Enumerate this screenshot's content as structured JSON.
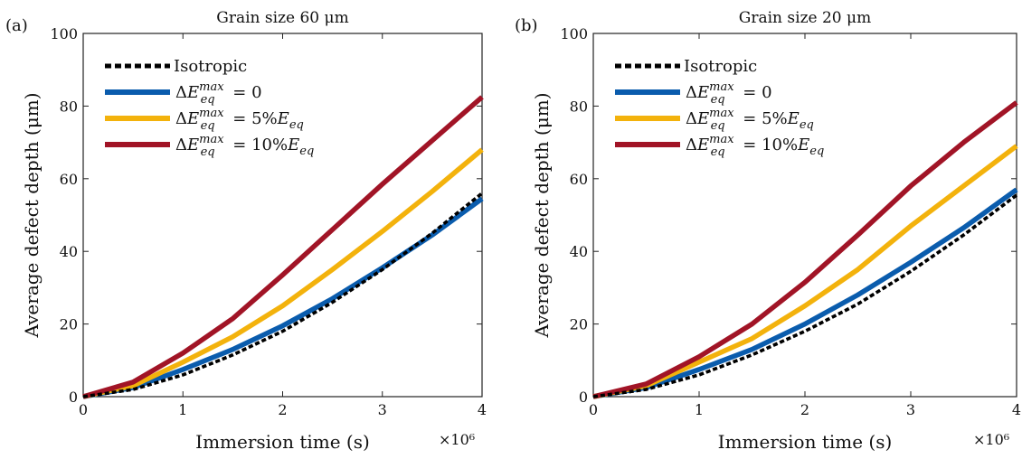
{
  "chart_data": [
    {
      "panel": "(a)",
      "type": "line",
      "title": "Grain size 60 μm",
      "xlabel": "Immersion time (s)",
      "x_multiplier": "×10⁶",
      "ylabel": "Average defect depth (μm)",
      "xlim": [
        0,
        4
      ],
      "ylim": [
        0,
        100
      ],
      "xticks": [
        "0",
        "1",
        "2",
        "3",
        "4"
      ],
      "yticks": [
        "0",
        "20",
        "40",
        "60",
        "80",
        "100"
      ],
      "legend_position": "top-left",
      "series": [
        {
          "name": "Isotropic",
          "style": "dotted",
          "color": "#000000",
          "x": [
            0,
            0.5,
            1,
            1.5,
            2,
            2.5,
            3,
            3.5,
            4
          ],
          "y": [
            0,
            2,
            6,
            11.5,
            18,
            26,
            35,
            45,
            56
          ]
        },
        {
          "name": "ΔE_eq^max = 0",
          "style": "solid",
          "color": "#0a5cad",
          "x": [
            0,
            0.5,
            1,
            1.5,
            2,
            2.5,
            3,
            3.5,
            4
          ],
          "y": [
            0,
            2.5,
            7.5,
            13,
            19.5,
            27,
            35.5,
            44.5,
            54.5
          ]
        },
        {
          "name": "ΔE_eq^max = 5%E_eq",
          "style": "solid",
          "color": "#f3b20c",
          "x": [
            0,
            0.5,
            1,
            1.5,
            2,
            2.5,
            3,
            3.5,
            4
          ],
          "y": [
            0,
            3,
            9.5,
            16.5,
            25,
            35,
            45.5,
            56.5,
            68
          ]
        },
        {
          "name": "ΔE_eq^max = 10%E_eq",
          "style": "solid",
          "color": "#a11426",
          "x": [
            0,
            0.5,
            1,
            1.5,
            2,
            2.5,
            3,
            3.5,
            4
          ],
          "y": [
            0,
            4,
            12,
            21.5,
            33.5,
            46,
            58.5,
            70.5,
            82.5
          ]
        }
      ]
    },
    {
      "panel": "(b)",
      "type": "line",
      "title": "Grain size 20 μm",
      "xlabel": "Immersion time (s)",
      "x_multiplier": "×10⁶",
      "ylabel": "Average defect depth (μm)",
      "xlim": [
        0,
        4
      ],
      "ylim": [
        0,
        100
      ],
      "xticks": [
        "0",
        "1",
        "2",
        "3",
        "4"
      ],
      "yticks": [
        "0",
        "20",
        "40",
        "60",
        "80",
        "100"
      ],
      "legend_position": "top-left",
      "series": [
        {
          "name": "Isotropic",
          "style": "dotted",
          "color": "#000000",
          "x": [
            0,
            0.5,
            1,
            1.5,
            2,
            2.5,
            3,
            3.5,
            4
          ],
          "y": [
            0,
            2,
            6,
            11.5,
            18,
            25.5,
            34.5,
            44.5,
            55.5
          ]
        },
        {
          "name": "ΔE_eq^max = 0",
          "style": "solid",
          "color": "#0a5cad",
          "x": [
            0,
            0.5,
            1,
            1.5,
            2,
            2.5,
            3,
            3.5,
            4
          ],
          "y": [
            0,
            2.5,
            7.5,
            13,
            20,
            28,
            37,
            46.5,
            57
          ]
        },
        {
          "name": "ΔE_eq^max = 5%E_eq",
          "style": "solid",
          "color": "#f3b20c",
          "x": [
            0,
            0.5,
            1,
            1.5,
            2,
            2.5,
            3,
            3.5,
            4
          ],
          "y": [
            0,
            3,
            9.5,
            16,
            25,
            35,
            47,
            58,
            69
          ]
        },
        {
          "name": "ΔE_eq^max = 10%E_eq",
          "style": "solid",
          "color": "#a11426",
          "x": [
            0,
            0.5,
            1,
            1.5,
            2,
            2.5,
            3,
            3.5,
            4
          ],
          "y": [
            0,
            3.5,
            11,
            20,
            31.5,
            44.5,
            58,
            70,
            81
          ]
        }
      ]
    }
  ]
}
